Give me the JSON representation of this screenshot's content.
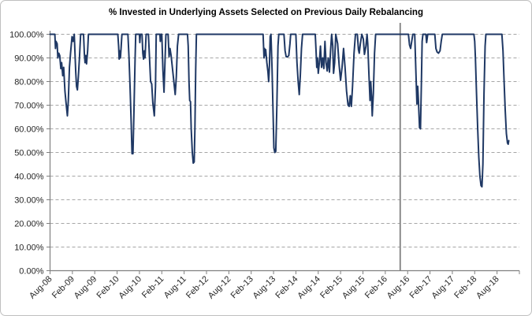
{
  "chart_data": {
    "type": "line",
    "title": "% Invested in Underlying Assets Selected on Previous Daily Rebalancing",
    "xlabel": "",
    "ylabel": "",
    "legend": "none",
    "grid": "horizontal-dashed",
    "x_unit": "months since Aug-2008",
    "xlim": [
      0,
      126
    ],
    "ylim": [
      0,
      100
    ],
    "x_ticks": [
      {
        "month": 0,
        "label": "Aug-08"
      },
      {
        "month": 6,
        "label": "Feb-09"
      },
      {
        "month": 12,
        "label": "Aug-09"
      },
      {
        "month": 18,
        "label": "Feb-10"
      },
      {
        "month": 24,
        "label": "Aug-10"
      },
      {
        "month": 30,
        "label": "Feb-11"
      },
      {
        "month": 36,
        "label": "Aug-11"
      },
      {
        "month": 42,
        "label": "Feb-12"
      },
      {
        "month": 48,
        "label": "Aug-12"
      },
      {
        "month": 54,
        "label": "Feb-13"
      },
      {
        "month": 60,
        "label": "Aug-13"
      },
      {
        "month": 66,
        "label": "Feb-14"
      },
      {
        "month": 72,
        "label": "Aug-14"
      },
      {
        "month": 78,
        "label": "Feb-15"
      },
      {
        "month": 84,
        "label": "Aug-15"
      },
      {
        "month": 90,
        "label": "Feb-16"
      },
      {
        "month": 96,
        "label": "Aug-16"
      },
      {
        "month": 102,
        "label": "Feb-17"
      },
      {
        "month": 108,
        "label": "Aug-17"
      },
      {
        "month": 114,
        "label": "Feb-18"
      },
      {
        "month": 120,
        "label": "Aug-18"
      }
    ],
    "y_ticks": [
      {
        "value": 0,
        "label": "0.00%"
      },
      {
        "value": 10,
        "label": "10.00%"
      },
      {
        "value": 20,
        "label": "20.00%"
      },
      {
        "value": 30,
        "label": "30.00%"
      },
      {
        "value": 40,
        "label": "40.00%"
      },
      {
        "value": 50,
        "label": "50.00%"
      },
      {
        "value": 60,
        "label": "60.00%"
      },
      {
        "value": 70,
        "label": "70.00%"
      },
      {
        "value": 80,
        "label": "80.00%"
      },
      {
        "value": 90,
        "label": "90.00%"
      },
      {
        "value": 100,
        "label": "100.00%"
      }
    ],
    "marker_line": {
      "month": 94,
      "color": "#808080"
    },
    "colors": {
      "series": "#1F3864",
      "gridline": "#A6A6A6",
      "axis": "#808080",
      "label": "#262626",
      "background": "#FFFFFF",
      "border": "#BFBFBF"
    },
    "series": [
      {
        "color": "#1F3864",
        "points": [
          [
            0,
            100
          ],
          [
            1.3,
            100
          ],
          [
            1.45,
            94
          ],
          [
            1.6,
            97
          ],
          [
            1.9,
            96
          ],
          [
            2.1,
            90
          ],
          [
            2.35,
            92
          ],
          [
            2.6,
            91
          ],
          [
            2.9,
            85.5
          ],
          [
            3.1,
            88
          ],
          [
            3.4,
            82.5
          ],
          [
            3.65,
            86
          ],
          [
            4,
            76
          ],
          [
            4.3,
            71
          ],
          [
            4.66,
            65.5
          ],
          [
            4.9,
            72
          ],
          [
            5.2,
            86
          ],
          [
            5.5,
            92
          ],
          [
            5.9,
            99
          ],
          [
            6.2,
            97
          ],
          [
            6.5,
            100
          ],
          [
            6.9,
            84
          ],
          [
            7.1,
            78
          ],
          [
            7.35,
            76.5
          ],
          [
            7.6,
            82
          ],
          [
            7.9,
            90
          ],
          [
            8.2,
            100
          ],
          [
            9,
            100
          ],
          [
            9.2,
            92
          ],
          [
            9.4,
            88
          ],
          [
            9.6,
            91
          ],
          [
            9.8,
            87.5
          ],
          [
            10.1,
            93
          ],
          [
            10.3,
            100
          ],
          [
            18.2,
            100
          ],
          [
            18.4,
            95
          ],
          [
            18.55,
            89.5
          ],
          [
            18.7,
            93
          ],
          [
            18.9,
            90
          ],
          [
            19.1,
            95
          ],
          [
            19.3,
            100
          ],
          [
            20.9,
            100
          ],
          [
            21.2,
            90
          ],
          [
            21.5,
            77
          ],
          [
            21.8,
            62
          ],
          [
            22,
            49.5
          ],
          [
            22.25,
            49.5
          ],
          [
            22.5,
            65
          ],
          [
            22.8,
            88
          ],
          [
            23,
            100
          ],
          [
            24,
            100
          ],
          [
            24.1,
            96.5
          ],
          [
            24.25,
            100
          ],
          [
            24.7,
            100
          ],
          [
            24.9,
            92
          ],
          [
            25.1,
            89.5
          ],
          [
            25.3,
            93
          ],
          [
            25.5,
            90
          ],
          [
            25.8,
            100
          ],
          [
            26.4,
            100
          ],
          [
            26.7,
            90
          ],
          [
            27,
            80
          ],
          [
            27.3,
            79
          ],
          [
            27.6,
            71
          ],
          [
            28,
            65.5
          ],
          [
            28.3,
            78
          ],
          [
            28.5,
            100
          ],
          [
            29.5,
            100
          ],
          [
            29.6,
            97
          ],
          [
            29.75,
            100
          ],
          [
            30,
            100
          ],
          [
            30.3,
            85
          ],
          [
            30.6,
            75.5
          ],
          [
            30.9,
            90
          ],
          [
            31.1,
            100
          ],
          [
            31.7,
            100
          ],
          [
            31.95,
            90.5
          ],
          [
            32.2,
            94
          ],
          [
            32.5,
            91
          ],
          [
            32.9,
            85
          ],
          [
            33.3,
            79
          ],
          [
            33.6,
            74.5
          ],
          [
            33.9,
            82
          ],
          [
            34.2,
            95
          ],
          [
            34.5,
            100
          ],
          [
            36.9,
            100
          ],
          [
            37.1,
            95
          ],
          [
            37.3,
            80
          ],
          [
            37.5,
            72
          ],
          [
            37.7,
            71.5
          ],
          [
            37.9,
            60
          ],
          [
            38.2,
            50
          ],
          [
            38.45,
            45.5
          ],
          [
            38.7,
            46
          ],
          [
            38.9,
            60
          ],
          [
            39.1,
            85
          ],
          [
            39.3,
            100
          ],
          [
            57.2,
            100
          ],
          [
            57.45,
            90
          ],
          [
            57.6,
            94
          ],
          [
            57.75,
            91
          ],
          [
            57.9,
            93.5
          ],
          [
            58.2,
            88
          ],
          [
            58.5,
            84
          ],
          [
            58.7,
            80
          ],
          [
            58.9,
            87
          ],
          [
            59.1,
            99
          ],
          [
            59.3,
            100
          ],
          [
            59.6,
            85
          ],
          [
            59.9,
            65
          ],
          [
            60.1,
            52
          ],
          [
            60.35,
            50
          ],
          [
            60.6,
            50.5
          ],
          [
            60.9,
            70
          ],
          [
            61.2,
            95
          ],
          [
            61.4,
            100
          ],
          [
            62.8,
            100
          ],
          [
            63.1,
            93
          ],
          [
            63.4,
            90.5
          ],
          [
            63.8,
            90.5
          ],
          [
            64.1,
            91
          ],
          [
            64.4,
            96
          ],
          [
            64.6,
            100
          ],
          [
            66,
            100
          ],
          [
            66.3,
            88
          ],
          [
            66.6,
            80
          ],
          [
            66.9,
            74.5
          ],
          [
            67.2,
            83
          ],
          [
            67.5,
            94
          ],
          [
            67.8,
            100
          ],
          [
            71.2,
            100
          ],
          [
            71.4,
            93
          ],
          [
            71.6,
            86
          ],
          [
            71.8,
            90
          ],
          [
            72,
            83.5
          ],
          [
            72.3,
            88
          ],
          [
            72.6,
            95
          ],
          [
            72.9,
            86
          ],
          [
            73.2,
            90
          ],
          [
            73.5,
            85.5
          ],
          [
            73.8,
            97
          ],
          [
            74.1,
            88
          ],
          [
            74.4,
            84.5
          ],
          [
            74.7,
            90
          ],
          [
            75,
            84
          ],
          [
            75.3,
            93
          ],
          [
            75.6,
            100
          ],
          [
            75.9,
            95
          ],
          [
            76.1,
            83.5
          ],
          [
            76.4,
            88
          ],
          [
            76.7,
            100
          ],
          [
            77.2,
            96
          ],
          [
            77.6,
            87
          ],
          [
            78,
            80.5
          ],
          [
            78.4,
            86
          ],
          [
            78.8,
            94
          ],
          [
            79.2,
            86
          ],
          [
            79.6,
            76
          ],
          [
            80,
            70
          ],
          [
            80.3,
            69.5
          ],
          [
            80.6,
            74
          ],
          [
            80.9,
            69.5
          ],
          [
            81.2,
            78
          ],
          [
            81.6,
            92
          ],
          [
            82,
            100
          ],
          [
            82.5,
            100
          ],
          [
            82.8,
            93.5
          ],
          [
            83,
            92
          ],
          [
            83.3,
            96
          ],
          [
            83.7,
            100
          ],
          [
            84.1,
            98
          ],
          [
            84.4,
            91.5
          ],
          [
            84.8,
            95
          ],
          [
            85.1,
            100
          ],
          [
            85.3,
            96
          ],
          [
            85.6,
            83
          ],
          [
            85.9,
            72
          ],
          [
            86.1,
            80
          ],
          [
            86.3,
            74
          ],
          [
            86.5,
            65.5
          ],
          [
            86.8,
            75
          ],
          [
            87.1,
            92
          ],
          [
            87.4,
            100
          ],
          [
            96.2,
            100
          ],
          [
            96.5,
            95.5
          ],
          [
            96.8,
            94
          ],
          [
            97.1,
            97
          ],
          [
            97.4,
            100
          ],
          [
            97.9,
            100
          ],
          [
            98.2,
            85
          ],
          [
            98.5,
            70.5
          ],
          [
            98.7,
            78
          ],
          [
            98.9,
            72
          ],
          [
            99.2,
            60.5
          ],
          [
            99.45,
            60
          ],
          [
            99.7,
            80
          ],
          [
            99.9,
            97
          ],
          [
            100.1,
            100
          ],
          [
            100.9,
            100
          ],
          [
            101.1,
            96.5
          ],
          [
            101.4,
            100
          ],
          [
            103.3,
            100
          ],
          [
            103.6,
            94
          ],
          [
            103.9,
            92.5
          ],
          [
            104.3,
            92
          ],
          [
            104.7,
            93
          ],
          [
            105,
            97
          ],
          [
            105.3,
            100
          ],
          [
            113.8,
            100
          ],
          [
            114,
            97
          ],
          [
            114.2,
            90
          ],
          [
            114.5,
            75
          ],
          [
            114.8,
            60
          ],
          [
            115.1,
            48
          ],
          [
            115.4,
            40
          ],
          [
            115.7,
            36
          ],
          [
            115.95,
            35.5
          ],
          [
            116.2,
            45
          ],
          [
            116.5,
            75
          ],
          [
            116.8,
            95
          ],
          [
            117,
            100
          ],
          [
            121.3,
            100
          ],
          [
            121.6,
            93
          ],
          [
            121.9,
            80
          ],
          [
            122.2,
            68
          ],
          [
            122.5,
            58
          ],
          [
            122.8,
            54
          ],
          [
            123,
            53.5
          ],
          [
            123.15,
            55
          ]
        ]
      }
    ]
  }
}
